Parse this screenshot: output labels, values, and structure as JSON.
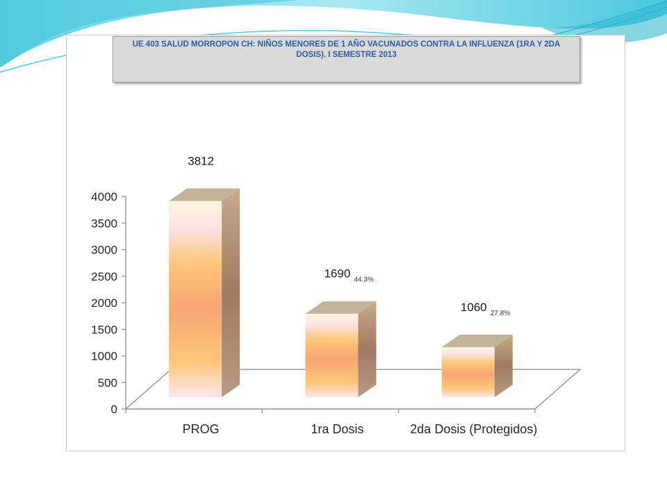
{
  "chart_data": {
    "type": "bar",
    "title": "UE 403 SALUD MORROPON CH: NIÑOS MENORES DE 1 AÑO VACUNADOS CONTRA LA INFLUENZA (1RA Y 2DA DOSIS). I SEMESTRE 2013",
    "categories": [
      "PROG",
      "1ra Dosis",
      "2da Dosis (Protegidos)"
    ],
    "values": [
      3812,
      1690,
      1060
    ],
    "value_labels": [
      "3812",
      "1690",
      "1060"
    ],
    "percent_labels": [
      "",
      "44.3%",
      "27.8%"
    ],
    "ylim": [
      0,
      4000
    ],
    "yticks": [
      0,
      500,
      1000,
      1500,
      2000,
      2500,
      3000,
      3500,
      4000
    ],
    "grid": false,
    "style": "3d-column",
    "xlabel": "",
    "ylabel": ""
  },
  "colors": {
    "title_text": "#2e5ea8",
    "bar_top": "#c2b49a",
    "bar_side": "#a0826a",
    "bar_light": "#fce0d6",
    "bar_gold": "#fcc778",
    "bar_orange": "#f7a574",
    "axis": "#8c8c8c",
    "deco_teal": "#3fc6d9"
  }
}
